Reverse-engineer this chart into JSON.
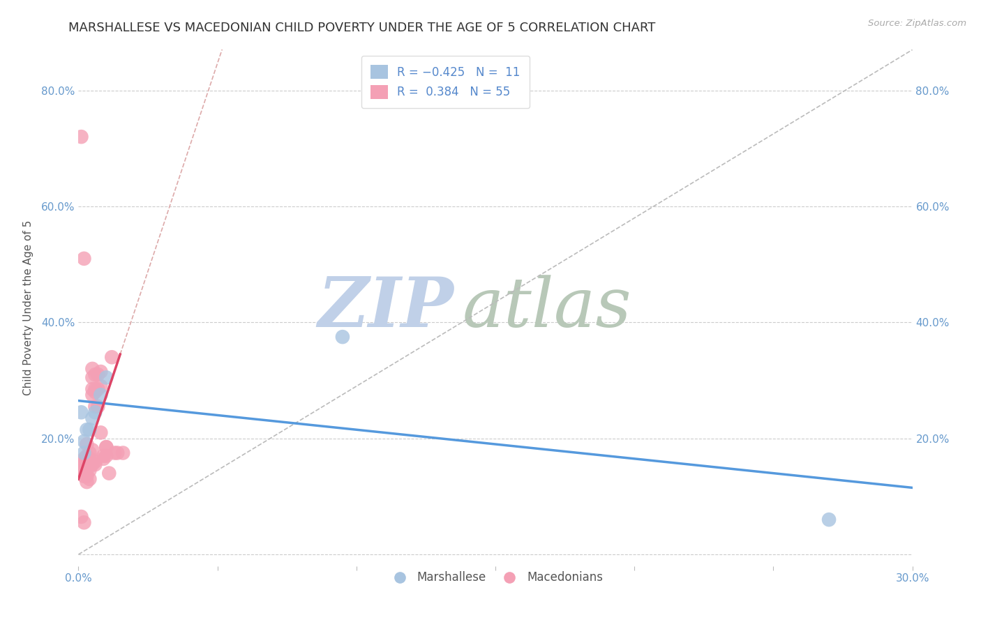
{
  "title": "MARSHALLESE VS MACEDONIAN CHILD POVERTY UNDER THE AGE OF 5 CORRELATION CHART",
  "source": "Source: ZipAtlas.com",
  "ylabel": "Child Poverty Under the Age of 5",
  "xlim": [
    0.0,
    0.3
  ],
  "ylim": [
    -0.02,
    0.87
  ],
  "xticks": [
    0.0,
    0.05,
    0.1,
    0.15,
    0.2,
    0.25,
    0.3
  ],
  "yticks": [
    0.0,
    0.2,
    0.4,
    0.6,
    0.8
  ],
  "grid_color": "#cccccc",
  "background_color": "#ffffff",
  "watermark_zip": "ZIP",
  "watermark_atlas": "atlas",
  "watermark_color_zip": "#c8d8ec",
  "watermark_color_atlas": "#c8d8c8",
  "legend_line1": "R = -0.425   N =  11",
  "legend_line2": "R =  0.384   N = 55",
  "marshallese_color": "#a8c4e0",
  "macedonian_color": "#f4a0b5",
  "marshallese_line_color": "#5599dd",
  "macedonian_line_color": "#dd4466",
  "macedonian_dash_color": "#ddaaaa",
  "axis_color": "#6699cc",
  "marshallese_x": [
    0.005,
    0.008,
    0.01,
    0.003,
    0.001,
    0.002,
    0.004,
    0.002,
    0.006,
    0.095,
    0.27
  ],
  "marshallese_y": [
    0.235,
    0.275,
    0.305,
    0.215,
    0.245,
    0.195,
    0.215,
    0.175,
    0.245,
    0.375,
    0.06
  ],
  "macedonian_x": [
    0.001,
    0.002,
    0.003,
    0.003,
    0.004,
    0.004,
    0.005,
    0.005,
    0.005,
    0.005,
    0.006,
    0.006,
    0.006,
    0.006,
    0.007,
    0.007,
    0.007,
    0.008,
    0.008,
    0.008,
    0.009,
    0.009,
    0.01,
    0.01,
    0.011,
    0.012,
    0.013,
    0.014,
    0.001,
    0.002,
    0.003,
    0.003,
    0.003,
    0.004,
    0.004,
    0.004,
    0.005,
    0.005,
    0.006,
    0.006,
    0.001,
    0.002,
    0.002,
    0.003,
    0.003,
    0.004,
    0.001,
    0.002,
    0.003,
    0.003,
    0.004,
    0.001,
    0.002,
    0.016,
    0.01
  ],
  "macedonian_y": [
    0.72,
    0.51,
    0.155,
    0.125,
    0.155,
    0.13,
    0.305,
    0.275,
    0.32,
    0.285,
    0.31,
    0.285,
    0.28,
    0.255,
    0.31,
    0.285,
    0.255,
    0.315,
    0.29,
    0.21,
    0.165,
    0.17,
    0.17,
    0.185,
    0.14,
    0.34,
    0.175,
    0.175,
    0.145,
    0.145,
    0.155,
    0.17,
    0.19,
    0.145,
    0.155,
    0.175,
    0.155,
    0.18,
    0.155,
    0.16,
    0.16,
    0.135,
    0.155,
    0.145,
    0.16,
    0.165,
    0.145,
    0.165,
    0.135,
    0.155,
    0.16,
    0.065,
    0.055,
    0.175,
    0.185
  ],
  "blue_line_x0": 0.0,
  "blue_line_y0": 0.265,
  "blue_line_x1": 0.3,
  "blue_line_y1": 0.115,
  "pink_line_x0": 0.0,
  "pink_line_y0": 0.13,
  "pink_line_x1": 0.015,
  "pink_line_y1": 0.345,
  "ref_line_x0": 0.0,
  "ref_line_y0": 0.0,
  "ref_line_x1": 0.3,
  "ref_line_y1": 0.87,
  "ref_line_color": "#bbbbbb",
  "title_fontsize": 13,
  "label_fontsize": 11,
  "tick_fontsize": 11,
  "legend_fontsize": 12
}
